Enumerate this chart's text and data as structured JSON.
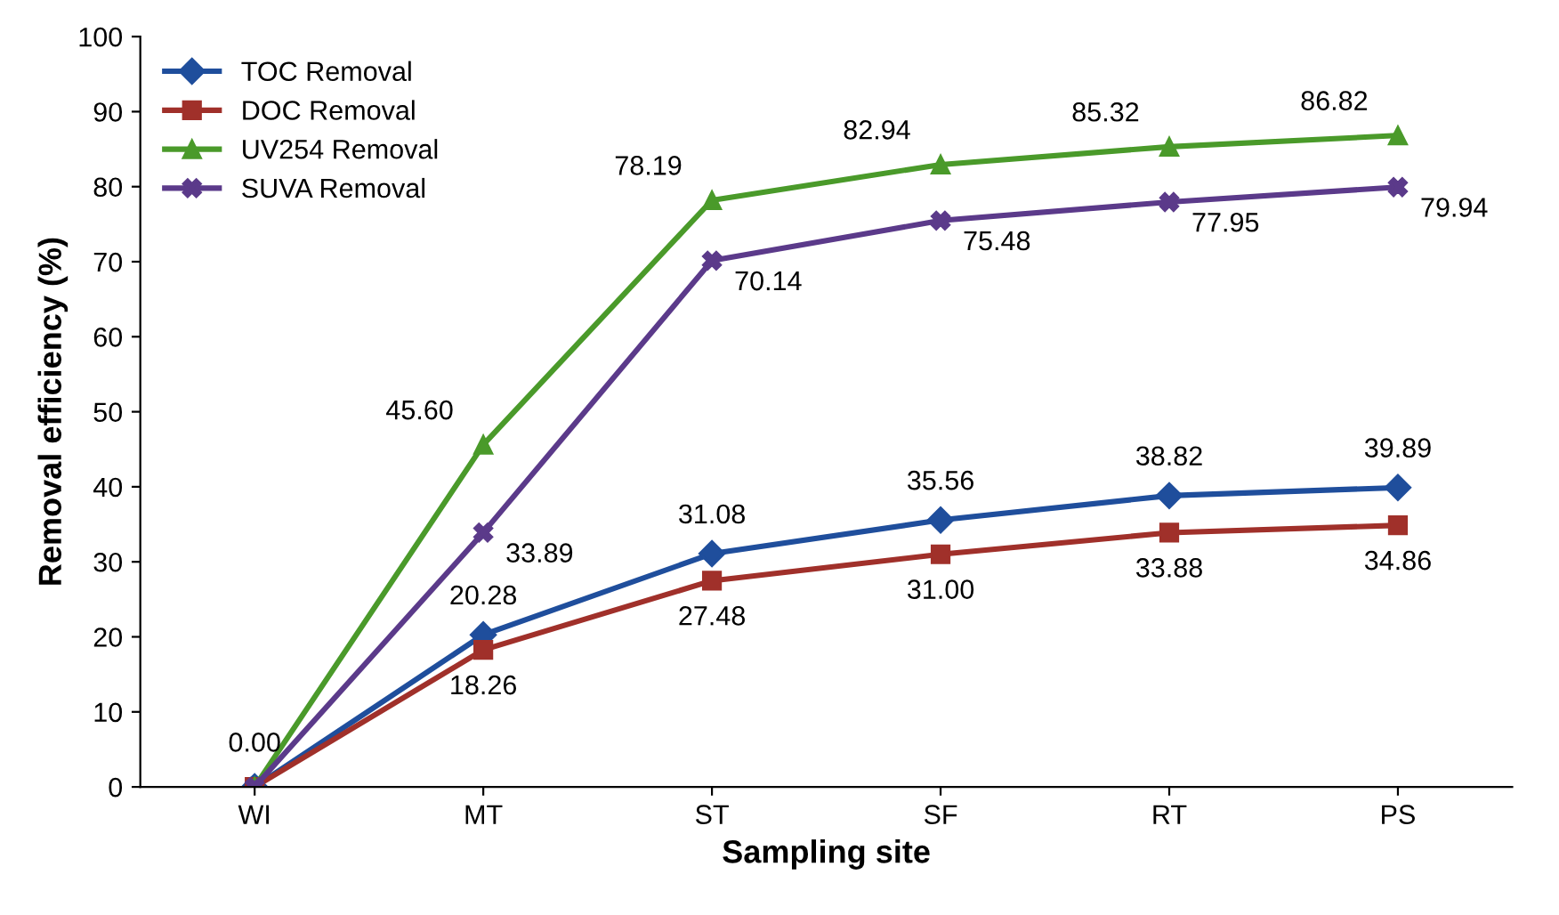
{
  "chart_data": {
    "type": "line",
    "xlabel": "Sampling site",
    "ylabel": "Removal efficiency (%)",
    "categories": [
      "WI",
      "MT",
      "ST",
      "SF",
      "RT",
      "PS"
    ],
    "series": [
      {
        "name": "TOC Removal",
        "color": "#1f4e9c",
        "marker": "diamond",
        "values": [
          0,
          20.28,
          31.08,
          35.56,
          38.82,
          39.89
        ],
        "value_labels": [
          "0.00",
          "20.28",
          "31.08",
          "35.56",
          "38.82",
          "39.89"
        ]
      },
      {
        "name": "DOC Removal",
        "color": "#a0302a",
        "marker": "square",
        "values": [
          0,
          18.26,
          27.48,
          31.0,
          33.88,
          34.86
        ],
        "value_labels": [
          null,
          "18.26",
          "27.48",
          "31.00",
          "33.88",
          "34.86"
        ]
      },
      {
        "name": "UV254 Removal",
        "color": "#4a9a2a",
        "marker": "triangle",
        "values": [
          0,
          45.6,
          78.19,
          82.94,
          85.32,
          86.82
        ],
        "value_labels": [
          null,
          "45.60",
          "78.19",
          "82.94",
          "85.32",
          "86.82"
        ]
      },
      {
        "name": "SUVA Removal",
        "color": "#5b3a8a",
        "marker": "cross",
        "values": [
          0,
          33.89,
          70.14,
          75.48,
          77.95,
          79.94
        ],
        "value_labels": [
          null,
          "33.89",
          "70.14",
          "75.48",
          "77.95",
          "79.94"
        ]
      }
    ],
    "ylim": [
      0,
      100
    ],
    "yticks": [
      0,
      10,
      20,
      30,
      40,
      50,
      60,
      70,
      80,
      90,
      100
    ],
    "grid": false,
    "legend": "top left",
    "line_style": "solid"
  }
}
